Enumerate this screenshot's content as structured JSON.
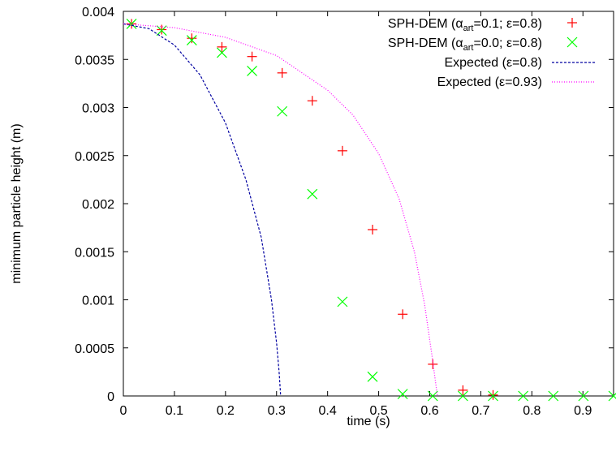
{
  "chart_data": {
    "type": "scatter",
    "xlabel": "time (s)",
    "ylabel": "minimum particle height (m)",
    "xlim": [
      0,
      0.96
    ],
    "ylim": [
      0,
      0.004
    ],
    "x_ticks": [
      {
        "v": 0,
        "label": "0"
      },
      {
        "v": 0.1,
        "label": "0.1"
      },
      {
        "v": 0.2,
        "label": "0.2"
      },
      {
        "v": 0.3,
        "label": "0.3"
      },
      {
        "v": 0.4,
        "label": "0.4"
      },
      {
        "v": 0.5,
        "label": "0.5"
      },
      {
        "v": 0.6,
        "label": "0.6"
      },
      {
        "v": 0.7,
        "label": "0.7"
      },
      {
        "v": 0.8,
        "label": "0.8"
      },
      {
        "v": 0.9,
        "label": "0.9"
      }
    ],
    "y_ticks": [
      {
        "v": 0,
        "label": "0"
      },
      {
        "v": 0.0005,
        "label": "0.0005"
      },
      {
        "v": 0.001,
        "label": "0.001"
      },
      {
        "v": 0.0015,
        "label": "0.0015"
      },
      {
        "v": 0.002,
        "label": "0.002"
      },
      {
        "v": 0.0025,
        "label": "0.0025"
      },
      {
        "v": 0.003,
        "label": "0.003"
      },
      {
        "v": 0.0035,
        "label": "0.0035"
      },
      {
        "v": 0.004,
        "label": "0.004"
      }
    ],
    "grid": false,
    "legend": "top-right",
    "series": [
      {
        "name_main": "SPH-DEM (α",
        "name_sub": "art",
        "name_rest": "=0.1; ε=0.8)",
        "marker": "plus",
        "color": "#ff0000",
        "x": [
          0.016,
          0.075,
          0.134,
          0.193,
          0.252,
          0.311,
          0.37,
          0.429,
          0.488,
          0.547,
          0.606,
          0.665,
          0.724
        ],
        "y": [
          0.00387,
          0.00381,
          0.00372,
          0.00363,
          0.00353,
          0.00336,
          0.00307,
          0.00255,
          0.00173,
          0.00085,
          0.00033,
          6e-05,
          1e-05
        ]
      },
      {
        "name_main": "SPH-DEM (α",
        "name_sub": "art",
        "name_rest": "=0.0; ε=0.8)",
        "marker": "cross",
        "color": "#00ff00",
        "x": [
          0.016,
          0.075,
          0.134,
          0.193,
          0.252,
          0.311,
          0.37,
          0.429,
          0.488,
          0.547,
          0.606,
          0.665,
          0.724,
          0.783,
          0.842,
          0.901,
          0.96
        ],
        "y": [
          0.00387,
          0.0038,
          0.0037,
          0.00357,
          0.00338,
          0.00296,
          0.0021,
          0.00098,
          0.0002,
          2e-05,
          0.0,
          0.0,
          0.0,
          0.0,
          0.0,
          0.0,
          0.0
        ]
      },
      {
        "name_main": "Expected (ε=0.8)",
        "line": "dashed",
        "color": "#0000a0",
        "x": [
          0.0,
          0.05,
          0.1,
          0.15,
          0.2,
          0.24,
          0.27,
          0.29,
          0.3,
          0.305,
          0.308
        ],
        "y": [
          0.00387,
          0.00382,
          0.00365,
          0.00334,
          0.00284,
          0.00225,
          0.00165,
          0.001,
          0.00055,
          0.00025,
          0.0
        ]
      },
      {
        "name_main": "Expected (ε=0.93)",
        "line": "dotted",
        "color": "#ff00ff",
        "x": [
          0.0,
          0.1,
          0.2,
          0.3,
          0.4,
          0.45,
          0.5,
          0.54,
          0.57,
          0.59,
          0.605,
          0.615
        ],
        "y": [
          0.00387,
          0.00383,
          0.00373,
          0.00354,
          0.00318,
          0.00292,
          0.00252,
          0.00205,
          0.0015,
          0.00095,
          0.0004,
          0.0
        ]
      }
    ]
  }
}
